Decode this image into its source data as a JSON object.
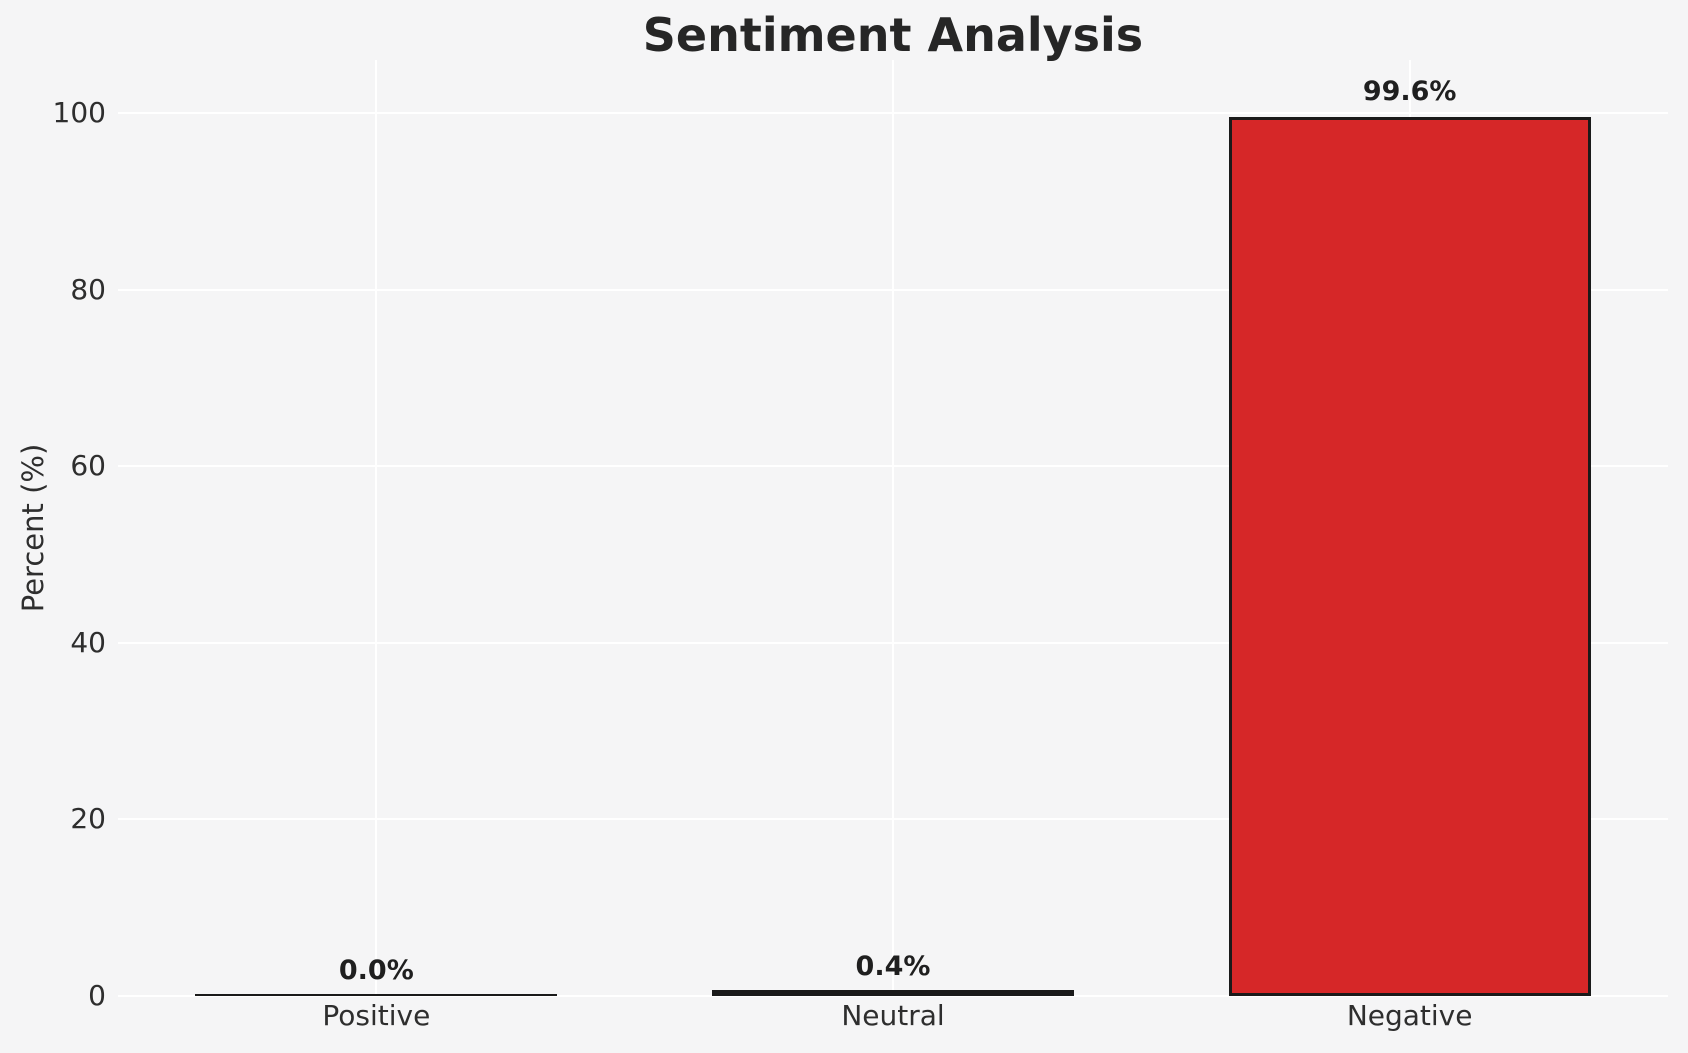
{
  "chart_data": {
    "type": "bar",
    "title": "Sentiment Analysis",
    "xlabel": "",
    "ylabel": "Percent (%)",
    "categories": [
      "Positive",
      "Neutral",
      "Negative"
    ],
    "values": [
      0.0,
      0.4,
      99.6
    ],
    "value_labels": [
      "0.0%",
      "0.4%",
      "99.6%"
    ],
    "yticks": [
      0,
      20,
      40,
      60,
      80,
      100
    ],
    "ylim": [
      0,
      106
    ],
    "grid": "on",
    "legend": "none",
    "bar_color": "#d62728",
    "bar_edge_color": "#1a1a1a",
    "background_color": "#f5f5f6",
    "grid_color": "#ffffff",
    "text_color": "#2e2e2e"
  }
}
